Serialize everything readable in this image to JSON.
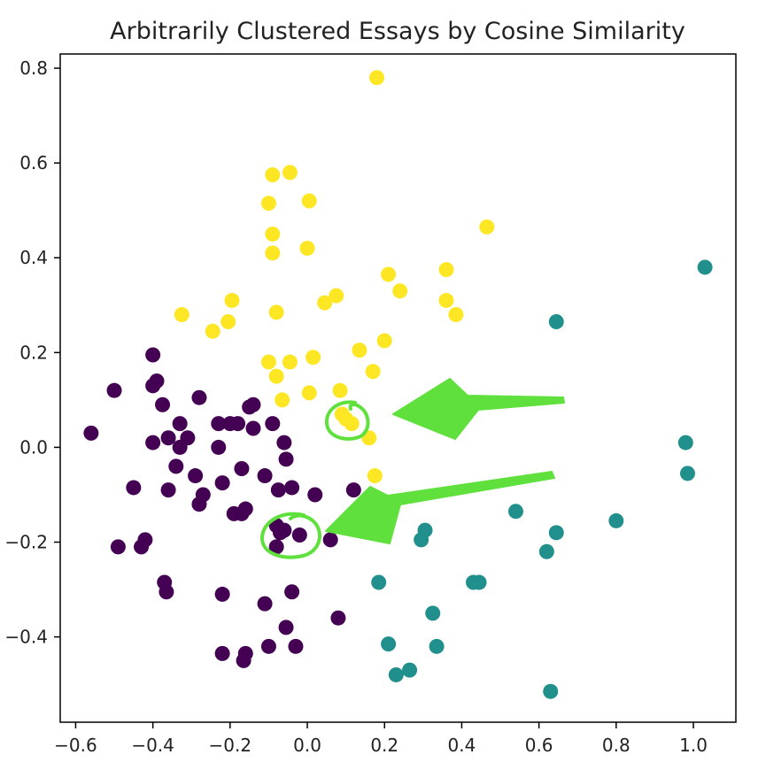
{
  "chart_data": {
    "type": "scatter",
    "title": "Arbitrarily Clustered Essays by Cosine Similarity",
    "xlabel": "",
    "ylabel": "",
    "xlim": [
      -0.64,
      1.11
    ],
    "ylim": [
      -0.58,
      0.83
    ],
    "x_ticks": [
      -0.6,
      -0.4,
      -0.2,
      0.0,
      0.2,
      0.4,
      0.6,
      0.8,
      1.0
    ],
    "x_tick_labels": [
      "−0.6",
      "−0.4",
      "−0.2",
      "0.0",
      "0.2",
      "0.4",
      "0.6",
      "0.8",
      "1.0"
    ],
    "y_ticks": [
      -0.4,
      -0.2,
      0.0,
      0.2,
      0.4,
      0.6,
      0.8
    ],
    "y_tick_labels": [
      "−0.4",
      "−0.2",
      "0.0",
      "0.2",
      "0.4",
      "0.6",
      "0.8"
    ],
    "grid": false,
    "legend": "none",
    "series": [
      {
        "color": "#440154",
        "points": [
          [
            -0.56,
            0.03
          ],
          [
            -0.5,
            0.12
          ],
          [
            -0.4,
            0.195
          ],
          [
            -0.39,
            0.14
          ],
          [
            -0.4,
            0.13
          ],
          [
            -0.375,
            0.09
          ],
          [
            -0.36,
            0.02
          ],
          [
            -0.4,
            0.01
          ],
          [
            -0.45,
            -0.085
          ],
          [
            -0.36,
            -0.09
          ],
          [
            -0.42,
            -0.195
          ],
          [
            -0.43,
            -0.21
          ],
          [
            -0.49,
            -0.21
          ],
          [
            -0.37,
            -0.285
          ],
          [
            -0.365,
            -0.305
          ],
          [
            -0.33,
            0.05
          ],
          [
            -0.31,
            0.02
          ],
          [
            -0.33,
            0.0
          ],
          [
            -0.34,
            -0.04
          ],
          [
            -0.29,
            -0.06
          ],
          [
            -0.28,
            0.105
          ],
          [
            -0.27,
            -0.1
          ],
          [
            -0.28,
            -0.12
          ],
          [
            -0.23,
            0.05
          ],
          [
            -0.23,
            0.0
          ],
          [
            -0.22,
            -0.075
          ],
          [
            -0.2,
            0.05
          ],
          [
            -0.18,
            0.05
          ],
          [
            -0.15,
            0.085
          ],
          [
            -0.14,
            0.09
          ],
          [
            -0.14,
            0.04
          ],
          [
            -0.17,
            -0.045
          ],
          [
            -0.19,
            -0.14
          ],
          [
            -0.17,
            -0.14
          ],
          [
            -0.16,
            -0.13
          ],
          [
            -0.09,
            0.05
          ],
          [
            -0.06,
            0.01
          ],
          [
            -0.055,
            -0.025
          ],
          [
            -0.11,
            -0.06
          ],
          [
            -0.075,
            -0.09
          ],
          [
            -0.04,
            -0.085
          ],
          [
            0.02,
            -0.1
          ],
          [
            0.12,
            -0.09
          ],
          [
            -0.08,
            -0.165
          ],
          [
            -0.07,
            -0.18
          ],
          [
            -0.06,
            -0.175
          ],
          [
            -0.02,
            -0.185
          ],
          [
            -0.08,
            -0.21
          ],
          [
            0.06,
            -0.195
          ],
          [
            -0.22,
            -0.31
          ],
          [
            -0.11,
            -0.33
          ],
          [
            -0.04,
            -0.305
          ],
          [
            0.08,
            -0.36
          ],
          [
            -0.055,
            -0.38
          ],
          [
            -0.22,
            -0.435
          ],
          [
            -0.16,
            -0.435
          ],
          [
            -0.165,
            -0.45
          ],
          [
            -0.1,
            -0.42
          ],
          [
            -0.03,
            -0.42
          ]
        ]
      },
      {
        "color": "#21908d",
        "points": [
          [
            1.03,
            0.38
          ],
          [
            0.645,
            0.265
          ],
          [
            0.98,
            0.01
          ],
          [
            0.985,
            -0.055
          ],
          [
            0.54,
            -0.135
          ],
          [
            0.645,
            -0.18
          ],
          [
            0.62,
            -0.22
          ],
          [
            0.8,
            -0.155
          ],
          [
            0.305,
            -0.175
          ],
          [
            0.295,
            -0.195
          ],
          [
            0.185,
            -0.285
          ],
          [
            0.43,
            -0.285
          ],
          [
            0.445,
            -0.285
          ],
          [
            0.325,
            -0.35
          ],
          [
            0.21,
            -0.415
          ],
          [
            0.335,
            -0.42
          ],
          [
            0.23,
            -0.48
          ],
          [
            0.265,
            -0.47
          ],
          [
            0.63,
            -0.515
          ]
        ]
      },
      {
        "color": "#fde725",
        "points": [
          [
            0.18,
            0.78
          ],
          [
            -0.09,
            0.575
          ],
          [
            -0.045,
            0.58
          ],
          [
            -0.1,
            0.515
          ],
          [
            0.005,
            0.52
          ],
          [
            -0.09,
            0.45
          ],
          [
            -0.09,
            0.41
          ],
          [
            0.0,
            0.42
          ],
          [
            0.465,
            0.465
          ],
          [
            0.36,
            0.375
          ],
          [
            0.21,
            0.365
          ],
          [
            0.24,
            0.33
          ],
          [
            0.36,
            0.31
          ],
          [
            0.385,
            0.28
          ],
          [
            -0.325,
            0.28
          ],
          [
            -0.245,
            0.245
          ],
          [
            -0.205,
            0.265
          ],
          [
            -0.195,
            0.31
          ],
          [
            -0.08,
            0.285
          ],
          [
            0.075,
            0.32
          ],
          [
            0.045,
            0.305
          ],
          [
            0.2,
            0.225
          ],
          [
            0.135,
            0.205
          ],
          [
            0.015,
            0.19
          ],
          [
            -0.045,
            0.18
          ],
          [
            -0.1,
            0.18
          ],
          [
            -0.08,
            0.15
          ],
          [
            0.005,
            0.115
          ],
          [
            -0.065,
            0.1
          ],
          [
            0.085,
            0.12
          ],
          [
            0.17,
            0.16
          ],
          [
            0.09,
            0.07
          ],
          [
            0.1,
            0.06
          ],
          [
            0.115,
            0.05
          ],
          [
            0.16,
            0.02
          ],
          [
            0.175,
            -0.06
          ]
        ]
      }
    ]
  },
  "annotations": {
    "color": "#5fe03c"
  }
}
